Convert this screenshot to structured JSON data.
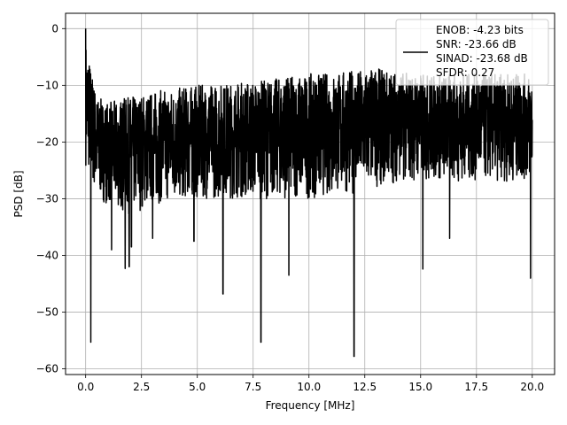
{
  "chart_data": {
    "type": "line",
    "xlabel": "Frequency [MHz]",
    "ylabel": "PSD [dB]",
    "xlim": [
      -0.9,
      21.0
    ],
    "ylim": [
      -61.0,
      2.7
    ],
    "x_ticks": [
      0.0,
      2.5,
      5.0,
      7.5,
      10.0,
      12.5,
      15.0,
      17.5,
      20.0
    ],
    "x_tick_labels": [
      "0.0",
      "2.5",
      "5.0",
      "7.5",
      "10.0",
      "12.5",
      "15.0",
      "17.5",
      "20.0"
    ],
    "y_ticks": [
      0,
      -10,
      -20,
      -30,
      -40,
      -50,
      -60
    ],
    "y_tick_labels": [
      "0",
      "−10",
      "−20",
      "−30",
      "−40",
      "−50",
      "−60"
    ],
    "grid": true,
    "legend_position": "top-right",
    "series": [
      {
        "name": "ENOB: -4.23 bits\nSNR: -23.66 dB\nSINAD: -23.68 dB\nSFDR: 0.27",
        "legend_lines": [
          "ENOB: -4.23 bits",
          "SNR: -23.66 dB",
          "SINAD: -23.68 dB",
          "SFDR: 0.27"
        ],
        "color": "#000000",
        "start": [
          0.0,
          0.0
        ],
        "x_range": [
          0.0,
          20.0
        ],
        "upper_envelope": [
          [
            0.0,
            -2
          ],
          [
            0.5,
            -12
          ],
          [
            1.0,
            -13
          ],
          [
            2.0,
            -12
          ],
          [
            3.0,
            -11
          ],
          [
            5.0,
            -10
          ],
          [
            8.0,
            -9
          ],
          [
            10.0,
            -8
          ],
          [
            13.0,
            -7
          ],
          [
            15.0,
            -8
          ],
          [
            17.5,
            -8
          ],
          [
            20.0,
            -8
          ]
        ],
        "lower_envelope": [
          [
            0.0,
            -24
          ],
          [
            0.5,
            -30
          ],
          [
            1.0,
            -31
          ],
          [
            2.0,
            -33
          ],
          [
            3.0,
            -31
          ],
          [
            5.0,
            -30
          ],
          [
            8.0,
            -30
          ],
          [
            10.0,
            -30
          ],
          [
            12.0,
            -29
          ],
          [
            14.0,
            -27
          ],
          [
            16.0,
            -27
          ],
          [
            18.0,
            -27
          ],
          [
            20.0,
            -27
          ]
        ],
        "deep_nulls": [
          [
            0.23,
            -55.3
          ],
          [
            1.16,
            -39.0
          ],
          [
            1.77,
            -42.3
          ],
          [
            1.95,
            -42.0
          ],
          [
            2.05,
            -38.5
          ],
          [
            3.0,
            -37.0
          ],
          [
            4.85,
            -37.5
          ],
          [
            6.15,
            -46.8
          ],
          [
            7.85,
            -55.3
          ],
          [
            9.1,
            -43.5
          ],
          [
            12.02,
            -57.8
          ],
          [
            15.1,
            -42.4
          ],
          [
            16.3,
            -37.0
          ],
          [
            19.92,
            -44.0
          ]
        ]
      }
    ]
  }
}
